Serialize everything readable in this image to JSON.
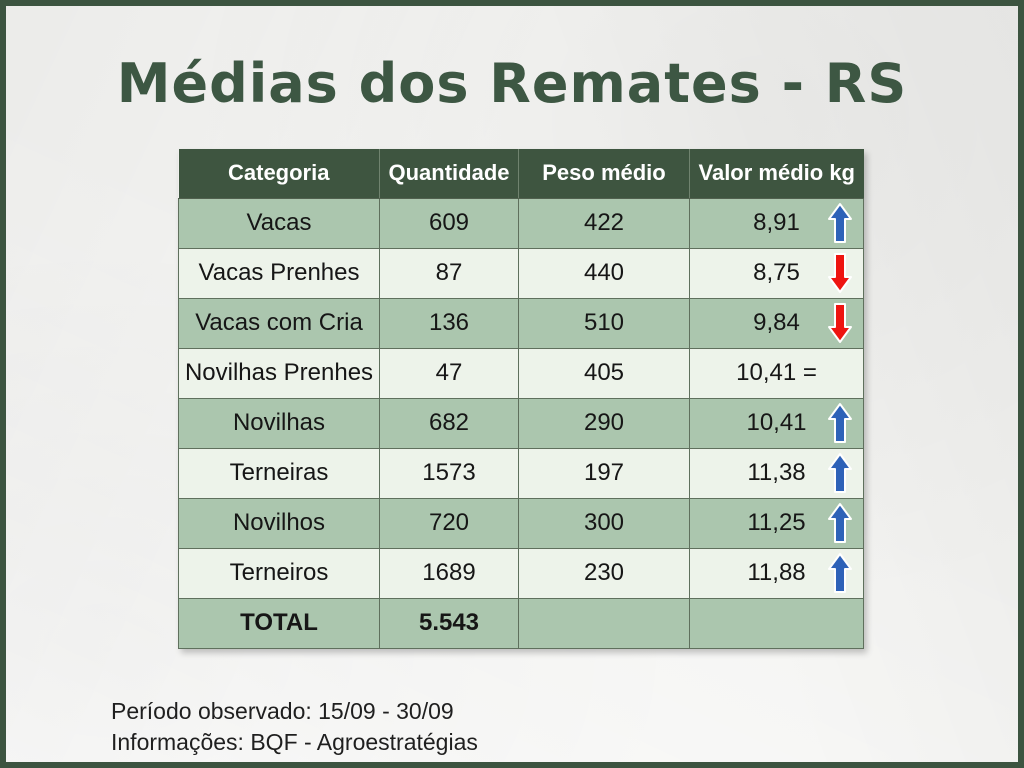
{
  "slide": {
    "title": "Médias dos Remates - RS",
    "footer_line1": "Período observado: 15/09 - 30/09",
    "footer_line2": "Informações: BQF - Agroestratégias"
  },
  "chart_data": {
    "type": "table",
    "title": "Médias dos Remates - RS",
    "columns": [
      "Categoria",
      "Quantidade",
      "Peso médio",
      "Valor médio kg"
    ],
    "rows": [
      {
        "categoria": "Vacas",
        "quantidade": "609",
        "peso_medio": "422",
        "valor_medio_kg": "8,91",
        "trend": "up"
      },
      {
        "categoria": "Vacas Prenhes",
        "quantidade": "87",
        "peso_medio": "440",
        "valor_medio_kg": "8,75",
        "trend": "down"
      },
      {
        "categoria": "Vacas com Cria",
        "quantidade": "136",
        "peso_medio": "510",
        "valor_medio_kg": "9,84",
        "trend": "down"
      },
      {
        "categoria": "Novilhas Prenhes",
        "quantidade": "47",
        "peso_medio": "405",
        "valor_medio_kg": "10,41",
        "trend": "equal"
      },
      {
        "categoria": "Novilhas",
        "quantidade": "682",
        "peso_medio": "290",
        "valor_medio_kg": "10,41",
        "trend": "up"
      },
      {
        "categoria": "Terneiras",
        "quantidade": "1573",
        "peso_medio": "197",
        "valor_medio_kg": "11,38",
        "trend": "up"
      },
      {
        "categoria": "Novilhos",
        "quantidade": "720",
        "peso_medio": "300",
        "valor_medio_kg": "11,25",
        "trend": "up"
      },
      {
        "categoria": "Terneiros",
        "quantidade": "1689",
        "peso_medio": "230",
        "valor_medio_kg": "11,88",
        "trend": "up"
      }
    ],
    "total_row": {
      "categoria": "TOTAL",
      "quantidade": "5.543",
      "peso_medio": "",
      "valor_medio_kg": "",
      "trend": "none"
    },
    "trend_symbols": {
      "equal": "="
    }
  },
  "colors": {
    "frame_green": "#3c5440",
    "title_green": "#3d5743",
    "header_bg": "#3e5540",
    "header_text": "#ffffff",
    "row_green": "#abc6ae",
    "row_light": "#edf3ea",
    "cell_border": "#5f705d",
    "arrow_up_blue": "#2e62b8",
    "arrow_down_red": "#ee1410",
    "arrow_outline": "#ffffff",
    "body_text": "#161616"
  }
}
